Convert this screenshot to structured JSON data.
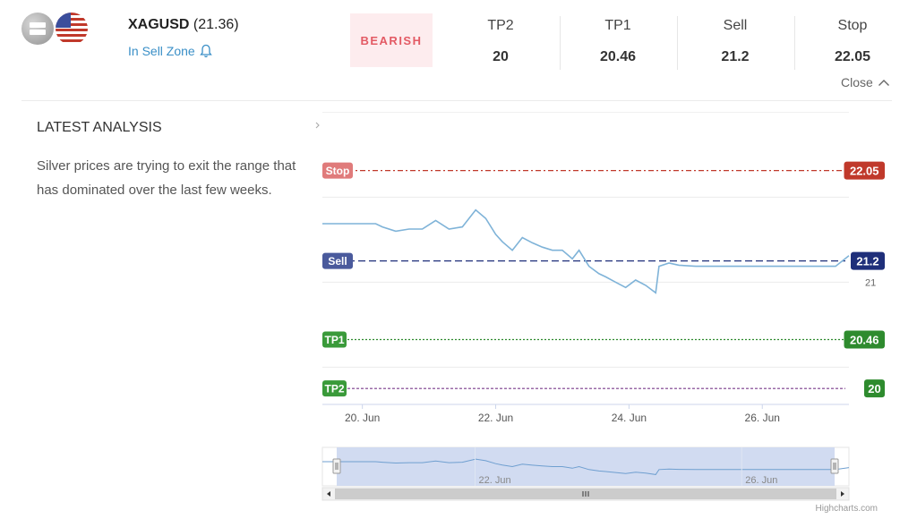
{
  "instrument": {
    "symbol": "XAGUSD",
    "price": "(21.36)",
    "zone": "In Sell Zone",
    "sentiment": "BEARISH"
  },
  "stats": [
    {
      "label": "TP2",
      "value": "20"
    },
    {
      "label": "TP1",
      "value": "20.46"
    },
    {
      "label": "Sell",
      "value": "21.2"
    },
    {
      "label": "Stop",
      "value": "22.05"
    }
  ],
  "close_label": "Close",
  "analysis": {
    "heading": "LATEST ANALYSIS",
    "body": "Silver prices are trying to exit the range that has dominated over the last few weeks."
  },
  "icons": [
    "silver-flag-icon",
    "us-flag-icon",
    "bell-icon",
    "chevron-up-icon",
    "chevron-right-icon",
    "scroll-left-arrow-icon",
    "scroll-right-arrow-icon",
    "scrollbar-grip-icon",
    "navigator-handle-icon"
  ],
  "colors": {
    "bearish_bg": "#fdecee",
    "bearish_text": "#e35a64",
    "zone_link": "#3a8fc7",
    "stop": "#c0392b",
    "stop_flag": "#e07b7b",
    "sell": "#1f2f7a",
    "sell_flag": "#4a5a9c",
    "tp": "#2e8b2e",
    "series": "#7fb3d8"
  },
  "chart_data": {
    "type": "line",
    "x_ticks": [
      "20. Jun",
      "22. Jun",
      "24. Jun",
      "26. Jun"
    ],
    "y_tick_label": "21",
    "navigator_ticks": [
      "22. Jun",
      "26. Jun"
    ],
    "credit": "Highcharts.com",
    "levels": [
      {
        "name": "Stop",
        "value": 22.05,
        "label": "22.05",
        "color": "#c0392b",
        "flag_color": "#e07b7b",
        "dash": "6,3,2,3"
      },
      {
        "name": "Sell",
        "value": 21.2,
        "label": "21.2",
        "color": "#1f2f7a",
        "flag_color": "#4a5a9c",
        "dash": "8,4"
      },
      {
        "name": "TP1",
        "value": 20.46,
        "label": "20.46",
        "color": "#2e8b2e",
        "flag_color": "#3a9a3a",
        "dash": "2,2"
      },
      {
        "name": "TP2",
        "value": 20,
        "label": "20",
        "color": "#2e8b2e",
        "flag_color": "#3a9a3a",
        "dash": "3,2",
        "line_color": "#7a3a8a"
      }
    ],
    "series": {
      "name": "XAGUSD",
      "points": [
        [
          19.4,
          21.55
        ],
        [
          20.2,
          21.55
        ],
        [
          20.3,
          21.52
        ],
        [
          20.5,
          21.48
        ],
        [
          20.7,
          21.5
        ],
        [
          20.9,
          21.5
        ],
        [
          21.1,
          21.58
        ],
        [
          21.3,
          21.5
        ],
        [
          21.5,
          21.52
        ],
        [
          21.7,
          21.68
        ],
        [
          21.85,
          21.6
        ],
        [
          22.0,
          21.45
        ],
        [
          22.1,
          21.38
        ],
        [
          22.25,
          21.3
        ],
        [
          22.4,
          21.42
        ],
        [
          22.55,
          21.37
        ],
        [
          22.7,
          21.33
        ],
        [
          22.85,
          21.3
        ],
        [
          23.0,
          21.3
        ],
        [
          23.15,
          21.22
        ],
        [
          23.25,
          21.3
        ],
        [
          23.4,
          21.15
        ],
        [
          23.55,
          21.08
        ],
        [
          23.65,
          21.05
        ],
        [
          23.8,
          21.0
        ],
        [
          23.95,
          20.95
        ],
        [
          24.1,
          21.02
        ],
        [
          24.25,
          20.97
        ],
        [
          24.4,
          20.9
        ],
        [
          24.45,
          21.15
        ],
        [
          24.6,
          21.18
        ],
        [
          24.75,
          21.16
        ],
        [
          25.0,
          21.15
        ],
        [
          26.0,
          21.15
        ],
        [
          26.9,
          21.15
        ],
        [
          27.1,
          21.15
        ],
        [
          27.3,
          21.25
        ]
      ]
    },
    "x_range": [
      19.4,
      27.3
    ],
    "y_range": [
      19.85,
      22.35
    ],
    "navigator": true
  }
}
